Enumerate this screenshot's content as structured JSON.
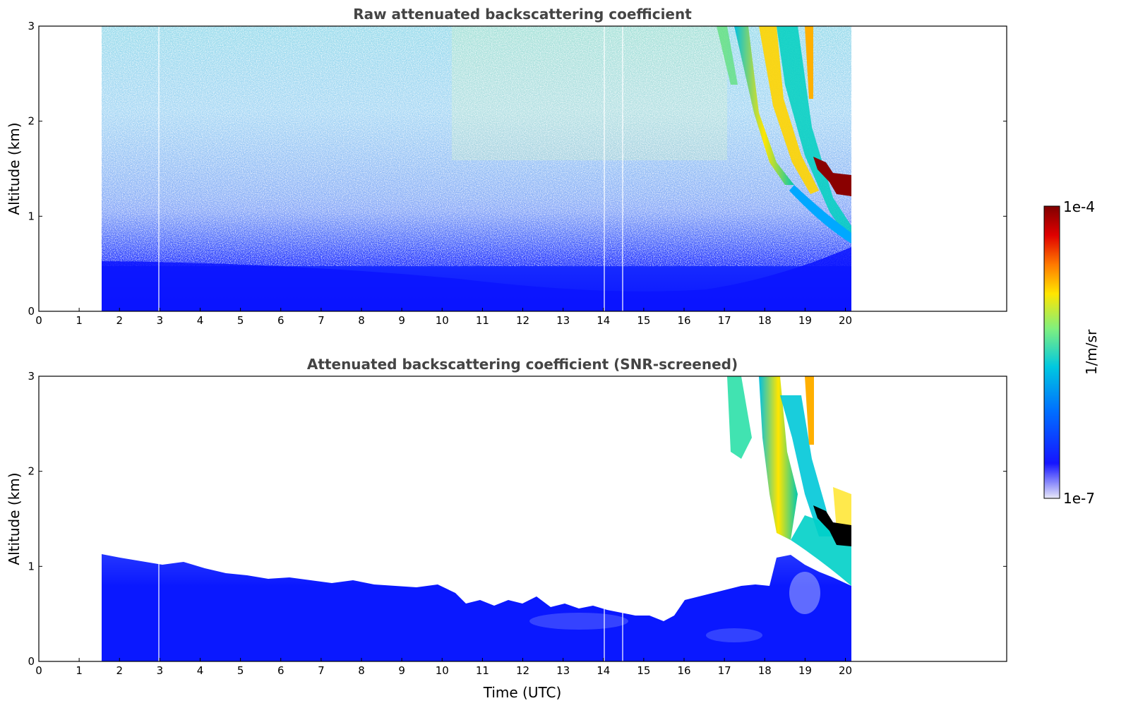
{
  "chart_data": [
    {
      "type": "heatmap",
      "title": "Raw attenuated backscattering coefficient",
      "xlabel": "",
      "ylabel": "Altitude (km)",
      "xlim": [
        0,
        24
      ],
      "ylim": [
        0,
        3
      ],
      "xticks": [
        "0",
        "1",
        "2",
        "3",
        "4",
        "5",
        "6",
        "7",
        "8",
        "9",
        "10",
        "11",
        "12",
        "13",
        "14",
        "15",
        "16",
        "17",
        "18",
        "19",
        "20"
      ],
      "yticks": [
        "0",
        "1",
        "2",
        "3"
      ],
      "data_time_range": [
        1.55,
        20.1
      ],
      "gaps_at_time": [
        3.0,
        14.05,
        14.5
      ],
      "grid": false
    },
    {
      "type": "heatmap",
      "title": "Attenuated backscattering coefficient (SNR-screened)",
      "xlabel": "Time (UTC)",
      "ylabel": "Altitude (km)",
      "xlim": [
        0,
        24
      ],
      "ylim": [
        0,
        3
      ],
      "xticks": [
        "0",
        "1",
        "2",
        "3",
        "4",
        "5",
        "6",
        "7",
        "8",
        "9",
        "10",
        "11",
        "12",
        "13",
        "14",
        "15",
        "16",
        "17",
        "18",
        "19",
        "20"
      ],
      "yticks": [
        "0",
        "1",
        "2",
        "3"
      ],
      "data_time_range": [
        1.55,
        20.1
      ],
      "gaps_at_time": [
        3.0,
        14.05,
        14.5
      ],
      "grid": false
    }
  ],
  "colorbar": {
    "min_label": "1e-7",
    "max_label": "1e-4",
    "units_label": "1/m/sr",
    "colors": [
      "#e8e8f8",
      "#1515ff",
      "#0070ff",
      "#00c8e0",
      "#7ff07f",
      "#ffe600",
      "#ff7a00",
      "#e00000",
      "#7f0000"
    ]
  },
  "colors": {
    "low": "#0a1aff",
    "mid": "#00c8d8",
    "high_cloud": "#ffe600",
    "saturated": "#7f0000"
  }
}
